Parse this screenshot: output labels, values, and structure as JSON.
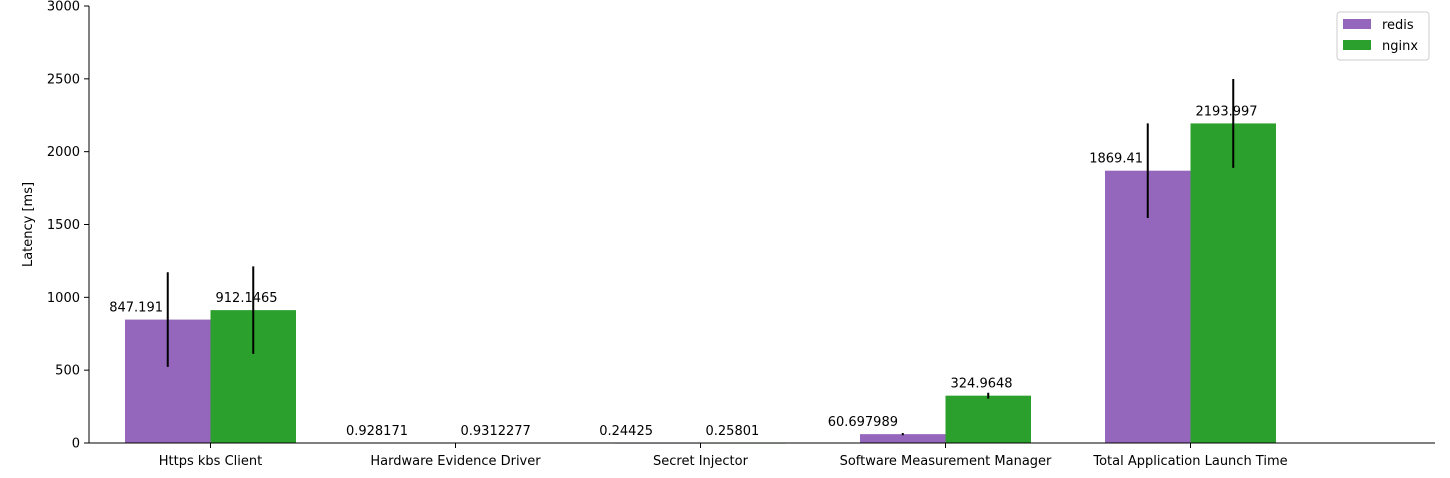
{
  "chart_data": {
    "type": "bar",
    "ylabel": "Latency [ms]",
    "xlabel": "",
    "ylim": [
      0,
      3000
    ],
    "yticks": [
      0,
      500,
      1000,
      1500,
      2000,
      2500,
      3000
    ],
    "categories": [
      "Https kbs Client",
      "Hardware Evidence Driver",
      "Secret Injector",
      "Software Measurement Manager",
      "Total Application Launch Time"
    ],
    "series": [
      {
        "name": "redis",
        "color": "#9467bd",
        "values": [
          847.191,
          0.928171,
          0.24425,
          60.697989,
          1869.41
        ],
        "labels": [
          "847.191",
          "0.928171",
          "0.24425",
          "60.697989",
          "1869.41"
        ],
        "errors": [
          325,
          0,
          0,
          8,
          325
        ]
      },
      {
        "name": "nginx",
        "color": "#2ca02c",
        "values": [
          912.1465,
          0.9312277,
          0.25801,
          324.9648,
          2193.997
        ],
        "labels": [
          "912.1465",
          "0.9312277",
          "0.25801",
          "324.9648",
          "2193.997"
        ],
        "errors": [
          300,
          0,
          0,
          20,
          305
        ]
      }
    ],
    "legend": {
      "position": "top-right"
    },
    "grid": false
  }
}
